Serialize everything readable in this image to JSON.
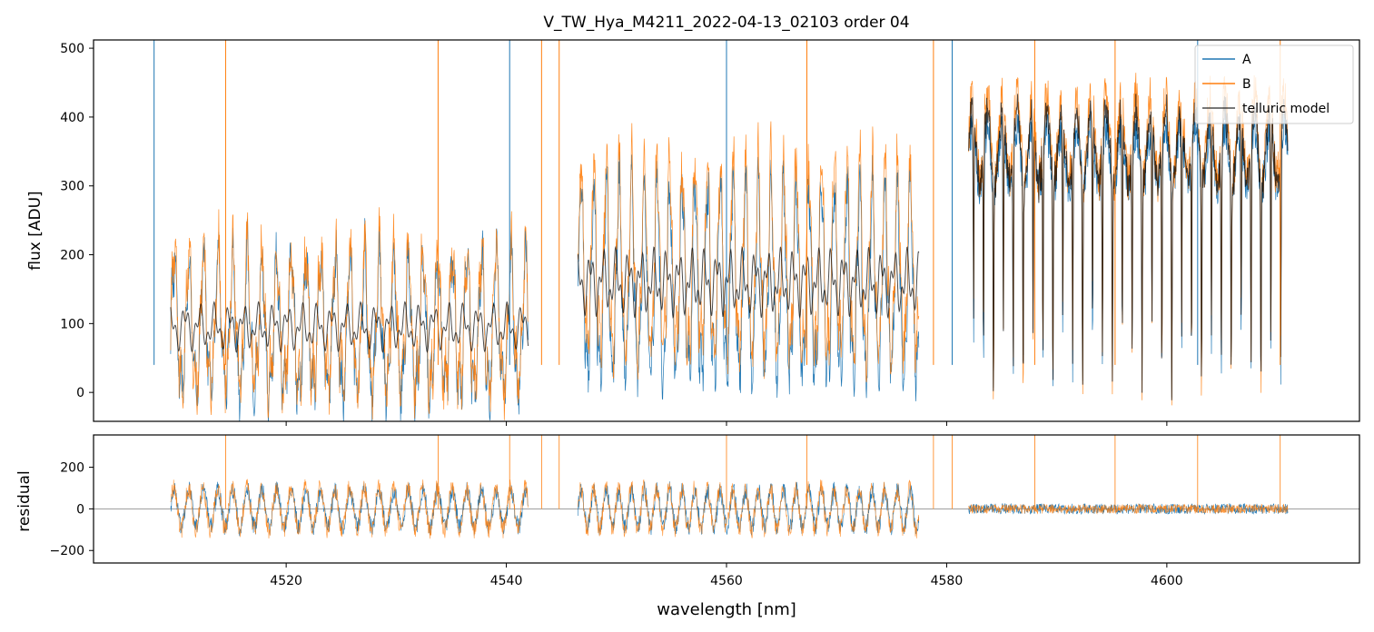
{
  "chart_data": [
    {
      "type": "line",
      "title": "V_TW_Hya_M4211_2022-04-13_02103  order 04",
      "xlabel": "",
      "ylabel": "flux [ADU]",
      "xlim": [
        4502.5,
        4617.5
      ],
      "ylim": [
        -42,
        512
      ],
      "yticks": [
        0,
        100,
        200,
        300,
        400,
        500
      ],
      "xticks": [
        4520,
        4540,
        4560,
        4580,
        4600
      ],
      "grid": false,
      "legend": "top-right",
      "series": [
        {
          "name": "A",
          "color": "#1f77b4"
        },
        {
          "name": "B",
          "color": "#ff7f0e"
        },
        {
          "name": "telluric model",
          "color": "#000000"
        }
      ],
      "segments": [
        {
          "x": [
            4509.5,
            4542.0
          ],
          "base_A": 95,
          "base_B": 100,
          "amplitude": 185,
          "period": 1.33
        },
        {
          "x": [
            4546.5,
            4577.5
          ],
          "base_A": 160,
          "base_B": 185,
          "amplitude": 260,
          "period": 1.15
        },
        {
          "x": [
            4582.0,
            4611.0
          ],
          "base_A": 340,
          "base_B": 370,
          "amplitude": 420,
          "period": 1.35
        }
      ]
    },
    {
      "type": "line",
      "title": "",
      "xlabel": "wavelength [nm]",
      "ylabel": "residual",
      "xlim": [
        4502.5,
        4617.5
      ],
      "ylim": [
        -260,
        355
      ],
      "yticks": [
        -200,
        0,
        200
      ],
      "xticks": [
        4520,
        4540,
        4560,
        4580,
        4600
      ],
      "zero_line": 0,
      "grid": false
    }
  ],
  "colors": {
    "A": "#1f77b4",
    "B": "#ff7f0e",
    "model": "#000000"
  }
}
